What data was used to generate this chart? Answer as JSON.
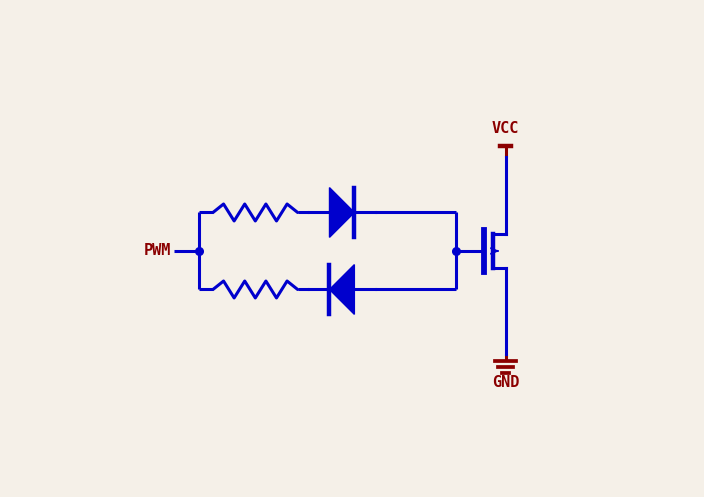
{
  "bg_color": "#f5f0e8",
  "blue": "#0000cd",
  "dark_red": "#8b0000",
  "lw": 2.2,
  "fig_w": 7.04,
  "fig_h": 4.97,
  "dpi": 100,
  "pwm_label": "PWM",
  "vcc_label": "VCC",
  "gnd_label": "GND"
}
